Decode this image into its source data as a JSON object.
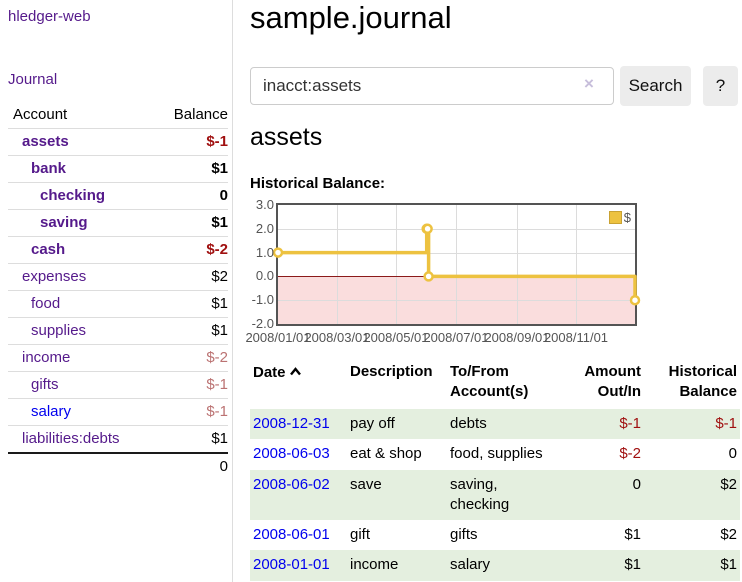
{
  "sidebar": {
    "brand": "hledger-web",
    "journal_link": "Journal",
    "accounts": {
      "headers": {
        "account": "Account",
        "balance": "Balance"
      },
      "rows": [
        {
          "account": "assets",
          "balance": "$-1"
        },
        {
          "account": "bank",
          "balance": "$1"
        },
        {
          "account": "checking",
          "balance": "0"
        },
        {
          "account": "saving",
          "balance": "$1"
        },
        {
          "account": "cash",
          "balance": "$-2"
        },
        {
          "account": "expenses",
          "balance": "$2"
        },
        {
          "account": "food",
          "balance": "$1"
        },
        {
          "account": "supplies",
          "balance": "$1"
        },
        {
          "account": "income",
          "balance": "$-2"
        },
        {
          "account": "gifts",
          "balance": "$-1"
        },
        {
          "account": "salary",
          "balance": "$-1"
        },
        {
          "account": "liabilities:debts",
          "balance": "$1"
        }
      ],
      "total": "0"
    }
  },
  "main": {
    "title": "sample.journal",
    "search": {
      "value": "inacct:assets",
      "clear": "×",
      "button_label": "Search",
      "help_label": "?"
    },
    "heading": "assets",
    "section_label": "Historical Balance:"
  },
  "chart_data": {
    "type": "line",
    "style": "step",
    "title": "Historical Balance",
    "legend": "$",
    "legend_position": "top-right",
    "grid": true,
    "ylim": [
      -2,
      3
    ],
    "yticks": [
      "3.0",
      "2.0",
      "1.0",
      "0.0",
      "-1.0",
      "-2.0"
    ],
    "xrange": [
      "2008-01-01",
      "2008-12-31"
    ],
    "xticks": [
      "2008/01/01",
      "2008/03/01",
      "2008/05/01",
      "2008/07/01",
      "2008/09/01",
      "2008/11/01"
    ],
    "series": [
      {
        "name": "$",
        "color": "#edc240",
        "points": [
          [
            "2008-01-01",
            1
          ],
          [
            "2008-06-01",
            2
          ],
          [
            "2008-06-02",
            2
          ],
          [
            "2008-06-03",
            0
          ],
          [
            "2008-12-31",
            -1
          ]
        ]
      }
    ],
    "negative_region_color": "#fadddd",
    "zero_line_color": "#8b1a1a"
  },
  "register": {
    "headers": {
      "date": "Date",
      "description": "Description",
      "tofrom": "To/From Account(s)",
      "amount": "Amount Out/In",
      "balance": "Historical Balance"
    },
    "rows": [
      {
        "date": "2008-12-31",
        "description": "pay off",
        "tofrom": "debts",
        "amount": "$-1",
        "balance": "$-1"
      },
      {
        "date": "2008-06-03",
        "description": "eat & shop",
        "tofrom": "food, supplies",
        "amount": "$-2",
        "balance": "0"
      },
      {
        "date": "2008-06-02",
        "description": "save",
        "tofrom": "saving, checking",
        "amount": "0",
        "balance": "$2"
      },
      {
        "date": "2008-06-01",
        "description": "gift",
        "tofrom": "gifts",
        "amount": "$1",
        "balance": "$2"
      },
      {
        "date": "2008-01-01",
        "description": "income",
        "tofrom": "salary",
        "amount": "$1",
        "balance": "$1"
      }
    ]
  }
}
